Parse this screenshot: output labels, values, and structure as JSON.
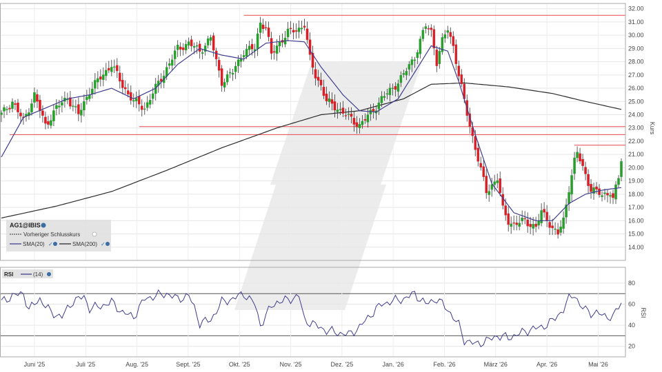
{
  "chart_data": [
    {
      "type": "candlestick",
      "instrument": "AG1@IBIS",
      "ylabel": "Kurs",
      "ylim": [
        13.0,
        32.4
      ],
      "yticks": [
        "32.00",
        "31.00",
        "30.00",
        "29.00",
        "28.00",
        "27.00",
        "26.00",
        "25.00",
        "24.00",
        "23.00",
        "22.00",
        "21.00",
        "20.00",
        "19.00",
        "18.00",
        "17.00",
        "16.00",
        "15.00",
        "14.00"
      ],
      "x_labels": [
        "Juni '25",
        "Juli '25",
        "Aug. '25",
        "Sept. '25",
        "Okt. '25",
        "Nov. '25",
        "Dez. '25",
        "Jan. '26",
        "Feb. '26",
        "März '26",
        "Apr. '26",
        "Mai '26"
      ],
      "legend": {
        "title": "AG1@IBIS",
        "prev_close": "Vorheriger Schlusskurs",
        "sma20": "SMA(20)",
        "sma200": "SMA(200)"
      },
      "horizontal_lines": [
        {
          "y": 31.5,
          "x_from": "Okt. '25",
          "x_to": "end"
        },
        {
          "y": 23.1,
          "x_from": "Aug. '25",
          "x_to": "end"
        },
        {
          "y": 22.5,
          "x_from": "start",
          "x_to": "end"
        },
        {
          "y": 21.7,
          "x_from": "Apr. '26",
          "x_to": "end"
        }
      ],
      "close_path": [
        [
          0,
          24.0
        ],
        [
          4,
          25.0
        ],
        [
          8,
          23.5
        ],
        [
          12,
          25.5
        ],
        [
          16,
          23.2
        ],
        [
          20,
          24.5
        ],
        [
          24,
          25.3
        ],
        [
          28,
          24.0
        ],
        [
          32,
          25.8
        ],
        [
          36,
          26.8
        ],
        [
          40,
          27.8
        ],
        [
          44,
          26.2
        ],
        [
          48,
          25.0
        ],
        [
          52,
          24.5
        ],
        [
          56,
          26.0
        ],
        [
          60,
          27.5
        ],
        [
          64,
          29.0
        ],
        [
          68,
          29.4
        ],
        [
          72,
          28.8
        ],
        [
          76,
          29.8
        ],
        [
          78,
          28.0
        ],
        [
          80,
          26.5
        ],
        [
          84,
          27.2
        ],
        [
          88,
          28.8
        ],
        [
          92,
          29.0
        ],
        [
          94,
          31.0
        ],
        [
          96,
          30.6
        ],
        [
          98,
          28.5
        ],
        [
          100,
          29.2
        ],
        [
          104,
          30.2
        ],
        [
          108,
          30.5
        ],
        [
          110,
          30.8
        ],
        [
          112,
          28.2
        ],
        [
          114,
          27.0
        ],
        [
          116,
          26.2
        ],
        [
          118,
          25.0
        ],
        [
          122,
          24.5
        ],
        [
          126,
          23.8
        ],
        [
          130,
          23.2
        ],
        [
          134,
          24.1
        ],
        [
          138,
          25.2
        ],
        [
          142,
          26.0
        ],
        [
          146,
          27.0
        ],
        [
          150,
          28.4
        ],
        [
          154,
          30.7
        ],
        [
          156,
          30.3
        ],
        [
          158,
          28.0
        ],
        [
          160,
          29.5
        ],
        [
          162,
          30.5
        ],
        [
          164,
          29.2
        ],
        [
          166,
          27.0
        ],
        [
          168,
          25.0
        ],
        [
          170,
          23.2
        ],
        [
          172,
          21.5
        ],
        [
          174,
          19.8
        ],
        [
          176,
          18.2
        ],
        [
          180,
          19.2
        ],
        [
          182,
          16.8
        ],
        [
          184,
          16.0
        ],
        [
          186,
          15.7
        ],
        [
          190,
          16.0
        ],
        [
          194,
          15.5
        ],
        [
          196,
          16.6
        ],
        [
          198,
          16.2
        ],
        [
          200,
          15.4
        ],
        [
          202,
          15.0
        ],
        [
          204,
          16.0
        ],
        [
          206,
          18.5
        ],
        [
          208,
          20.5
        ],
        [
          209,
          21.1
        ],
        [
          211,
          20.0
        ],
        [
          214,
          18.4
        ],
        [
          218,
          17.9
        ],
        [
          221,
          18.2
        ],
        [
          222,
          17.6
        ],
        [
          224,
          19.2
        ],
        [
          225,
          20.6
        ]
      ],
      "sma20_path": [
        [
          0,
          20.8
        ],
        [
          8,
          23.8
        ],
        [
          16,
          24.5
        ],
        [
          24,
          25.2
        ],
        [
          32,
          25.5
        ],
        [
          40,
          26.0
        ],
        [
          48,
          25.2
        ],
        [
          56,
          26.0
        ],
        [
          64,
          27.8
        ],
        [
          72,
          29.0
        ],
        [
          80,
          28.5
        ],
        [
          88,
          28.2
        ],
        [
          96,
          29.4
        ],
        [
          104,
          29.6
        ],
        [
          110,
          29.5
        ],
        [
          116,
          27.6
        ],
        [
          124,
          25.5
        ],
        [
          130,
          24.3
        ],
        [
          136,
          24.2
        ],
        [
          144,
          25.2
        ],
        [
          150,
          27.2
        ],
        [
          156,
          29.2
        ],
        [
          162,
          28.8
        ],
        [
          166,
          26.5
        ],
        [
          172,
          22.5
        ],
        [
          178,
          18.8
        ],
        [
          186,
          16.6
        ],
        [
          194,
          16.0
        ],
        [
          200,
          16.0
        ],
        [
          206,
          17.3
        ],
        [
          212,
          18.0
        ],
        [
          218,
          18.3
        ],
        [
          225,
          18.5
        ]
      ],
      "sma200_path": [
        [
          0,
          16.2
        ],
        [
          20,
          17.1
        ],
        [
          40,
          18.2
        ],
        [
          60,
          19.8
        ],
        [
          80,
          21.5
        ],
        [
          100,
          23.0
        ],
        [
          116,
          24.0
        ],
        [
          130,
          24.3
        ],
        [
          146,
          25.2
        ],
        [
          156,
          26.3
        ],
        [
          168,
          26.4
        ],
        [
          184,
          26.1
        ],
        [
          200,
          25.6
        ],
        [
          212,
          25.0
        ],
        [
          225,
          24.4
        ]
      ]
    },
    {
      "type": "line",
      "name": "RSI",
      "period": "(14)",
      "ylim": [
        10,
        95
      ],
      "yticks": [
        "80",
        "60",
        "40",
        "20"
      ],
      "reference_lines": [
        70,
        30
      ],
      "values_path": [
        [
          0,
          62
        ],
        [
          4,
          68
        ],
        [
          8,
          70
        ],
        [
          10,
          55
        ],
        [
          14,
          65
        ],
        [
          18,
          52
        ],
        [
          22,
          48
        ],
        [
          26,
          63
        ],
        [
          30,
          67
        ],
        [
          32,
          56
        ],
        [
          36,
          58
        ],
        [
          40,
          62
        ],
        [
          44,
          52
        ],
        [
          48,
          48
        ],
        [
          52,
          65
        ],
        [
          56,
          68
        ],
        [
          60,
          70
        ],
        [
          64,
          65
        ],
        [
          68,
          68
        ],
        [
          70,
          57
        ],
        [
          72,
          42
        ],
        [
          76,
          45
        ],
        [
          80,
          62
        ],
        [
          84,
          65
        ],
        [
          88,
          70
        ],
        [
          92,
          60
        ],
        [
          94,
          40
        ],
        [
          98,
          58
        ],
        [
          100,
          62
        ],
        [
          104,
          64
        ],
        [
          108,
          68
        ],
        [
          110,
          45
        ],
        [
          114,
          40
        ],
        [
          118,
          35
        ],
        [
          122,
          33
        ],
        [
          126,
          31
        ],
        [
          130,
          38
        ],
        [
          134,
          50
        ],
        [
          138,
          60
        ],
        [
          142,
          63
        ],
        [
          146,
          65
        ],
        [
          150,
          70
        ],
        [
          154,
          60
        ],
        [
          158,
          65
        ],
        [
          162,
          55
        ],
        [
          166,
          40
        ],
        [
          168,
          26
        ],
        [
          172,
          22
        ],
        [
          176,
          25
        ],
        [
          180,
          30
        ],
        [
          184,
          28
        ],
        [
          188,
          32
        ],
        [
          192,
          36
        ],
        [
          196,
          38
        ],
        [
          200,
          44
        ],
        [
          204,
          55
        ],
        [
          206,
          65
        ],
        [
          208,
          70
        ],
        [
          210,
          58
        ],
        [
          214,
          52
        ],
        [
          218,
          50
        ],
        [
          222,
          47
        ],
        [
          224,
          58
        ],
        [
          225,
          62
        ]
      ]
    }
  ]
}
